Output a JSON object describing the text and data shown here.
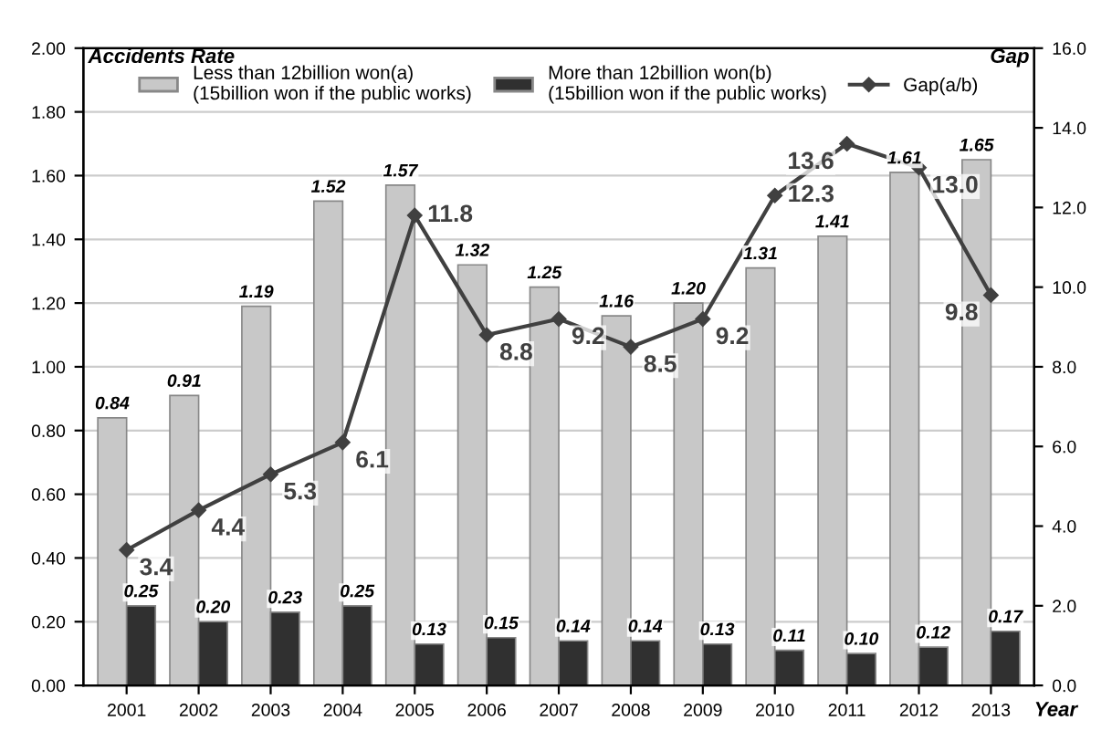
{
  "chart_data": {
    "type": "bar",
    "categories": [
      "2001",
      "2002",
      "2003",
      "2004",
      "2005",
      "2006",
      "2007",
      "2008",
      "2009",
      "2010",
      "2011",
      "2012",
      "2013"
    ],
    "ylabel": "Accidents Rate",
    "y2label": "Gap",
    "xlabel": "Year",
    "series": [
      {
        "name": "Less than 12billion won(a)\n(15billion won if the public works)",
        "color": "#c8c8c8",
        "values": [
          0.84,
          0.91,
          1.19,
          1.52,
          1.57,
          1.32,
          1.25,
          1.16,
          1.2,
          1.31,
          1.41,
          1.61,
          1.65
        ],
        "value_labels": [
          "0.84",
          "0.91",
          "1.19",
          "1.52",
          "1.57",
          "1.32",
          "1.25",
          "1.16",
          "1.20",
          "1.31",
          "1.41",
          "1.61",
          "1.65"
        ]
      },
      {
        "name": "More than 12billion won(b)\n(15billion won if the public works)",
        "color": "#303030",
        "values": [
          0.25,
          0.2,
          0.23,
          0.25,
          0.13,
          0.15,
          0.14,
          0.14,
          0.13,
          0.11,
          0.1,
          0.12,
          0.17
        ],
        "value_labels": [
          "0.25",
          "0.20",
          "0.23",
          "0.25",
          "0.13",
          "0.15",
          "0.14",
          "0.14",
          "0.13",
          "0.11",
          "0.10",
          "0.12",
          "0.17"
        ]
      },
      {
        "name": "Gap(a/b)",
        "type": "line",
        "axis": "y2",
        "color": "#404040",
        "marker": "diamond",
        "line_style": "solid",
        "values": [
          3.4,
          4.4,
          5.3,
          6.1,
          11.8,
          8.8,
          9.2,
          8.5,
          9.2,
          12.3,
          13.6,
          13.0,
          9.8
        ],
        "value_labels": [
          "3.4",
          "4.4",
          "5.3",
          "6.1",
          "11.8",
          "8.8",
          "9.2",
          "8.5",
          "9.2",
          "12.3",
          "13.6",
          "13.0",
          "9.8"
        ]
      }
    ],
    "ylim": [
      0,
      2
    ],
    "yticks": [
      {
        "value": 0,
        "label": "0.00"
      },
      {
        "value": 0.2,
        "label": "0.20"
      },
      {
        "value": 0.4,
        "label": "0.40"
      },
      {
        "value": 0.6,
        "label": "0.60"
      },
      {
        "value": 0.8,
        "label": "0.80"
      },
      {
        "value": 1.0,
        "label": "1.00"
      },
      {
        "value": 1.2,
        "label": "1.20"
      },
      {
        "value": 1.4,
        "label": "1.40"
      },
      {
        "value": 1.6,
        "label": "1.60"
      },
      {
        "value": 1.8,
        "label": "1.80"
      },
      {
        "value": 2.0,
        "label": "2.00"
      }
    ],
    "y2lim": [
      0,
      16
    ],
    "y2ticks": [
      {
        "value": 0,
        "label": "0.0"
      },
      {
        "value": 2,
        "label": "2.0"
      },
      {
        "value": 4,
        "label": "4.0"
      },
      {
        "value": 6,
        "label": "6.0"
      },
      {
        "value": 8,
        "label": "8.0"
      },
      {
        "value": 10,
        "label": "10.0"
      },
      {
        "value": 12,
        "label": "12.0"
      },
      {
        "value": 14,
        "label": "14.0"
      },
      {
        "value": 16,
        "label": "16.0"
      }
    ],
    "grid": "y",
    "legend": "top"
  }
}
